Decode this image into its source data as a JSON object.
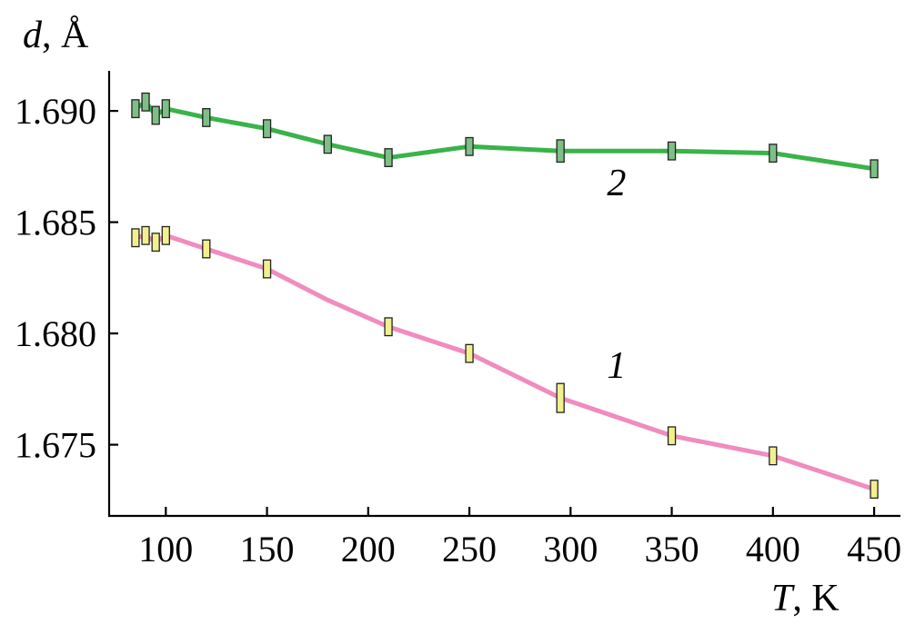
{
  "chart_data": {
    "type": "line",
    "xlabel_var": "T",
    "xlabel_unit": ", K",
    "ylabel_var": "d",
    "ylabel_unit": ", Å",
    "xlim": [
      72,
      463
    ],
    "ylim": [
      1.6718,
      1.6918
    ],
    "xticks": [
      100,
      150,
      200,
      250,
      300,
      350,
      400,
      450
    ],
    "yticks": [
      1.675,
      1.68,
      1.685,
      1.69
    ],
    "ytick_labels": [
      "1.675",
      "1.680",
      "1.685",
      "1.690"
    ],
    "grid": false,
    "series": [
      {
        "label": "1",
        "line_color": "#f08cbf",
        "bar_fill": "#f2ef8f",
        "points": [
          {
            "x": 85,
            "y": 1.6843,
            "err": 0.0008
          },
          {
            "x": 90,
            "y": 1.6844,
            "err": 0.0008
          },
          {
            "x": 95,
            "y": 1.6841,
            "err": 0.0008
          },
          {
            "x": 100,
            "y": 1.6844,
            "err": 0.0008
          },
          {
            "x": 120,
            "y": 1.6838,
            "err": 0.0008
          },
          {
            "x": 150,
            "y": 1.6829,
            "err": 0.0008
          },
          {
            "x": 180,
            "y": 1.6815,
            "err": null
          },
          {
            "x": 210,
            "y": 1.6803,
            "err": 0.0008
          },
          {
            "x": 250,
            "y": 1.6791,
            "err": 0.0008
          },
          {
            "x": 295,
            "y": 1.6771,
            "err": 0.0013
          },
          {
            "x": 350,
            "y": 1.6754,
            "err": 0.0008
          },
          {
            "x": 400,
            "y": 1.6745,
            "err": 0.0008
          },
          {
            "x": 450,
            "y": 1.673,
            "err": 0.0008
          }
        ],
        "label_pos": {
          "x": 318,
          "y": 1.678
        }
      },
      {
        "label": "2",
        "line_color": "#39b34a",
        "bar_fill": "#7dbf86",
        "points": [
          {
            "x": 85,
            "y": 1.6901,
            "err": 0.0008
          },
          {
            "x": 90,
            "y": 1.6904,
            "err": 0.0008
          },
          {
            "x": 95,
            "y": 1.6898,
            "err": 0.0008
          },
          {
            "x": 100,
            "y": 1.6901,
            "err": 0.0008
          },
          {
            "x": 120,
            "y": 1.6897,
            "err": 0.0008
          },
          {
            "x": 150,
            "y": 1.6892,
            "err": 0.0008
          },
          {
            "x": 180,
            "y": 1.6885,
            "err": 0.0008
          },
          {
            "x": 210,
            "y": 1.6879,
            "err": 0.0008
          },
          {
            "x": 250,
            "y": 1.6884,
            "err": 0.0008
          },
          {
            "x": 295,
            "y": 1.6882,
            "err": 0.001
          },
          {
            "x": 350,
            "y": 1.6882,
            "err": 0.0008
          },
          {
            "x": 400,
            "y": 1.6881,
            "err": 0.0008
          },
          {
            "x": 450,
            "y": 1.6874,
            "err": 0.0008
          }
        ],
        "label_pos": {
          "x": 318,
          "y": 1.6862
        }
      }
    ]
  }
}
